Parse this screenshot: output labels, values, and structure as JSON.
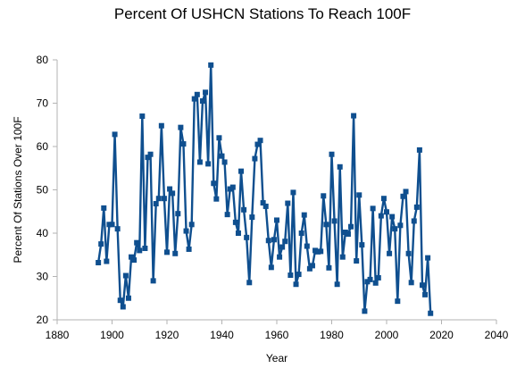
{
  "chart_data": {
    "type": "line",
    "title": "Percent Of USHCN Stations To Reach 100F",
    "xlabel": "Year",
    "ylabel": "Percent Of Stations Over 100F",
    "xlim": [
      1880,
      2040
    ],
    "ylim": [
      20,
      80
    ],
    "xticks": [
      1880,
      1900,
      1920,
      1940,
      1960,
      1980,
      2000,
      2020,
      2040
    ],
    "yticks": [
      20,
      30,
      40,
      50,
      60,
      70,
      80
    ],
    "grid": false,
    "legend": "none",
    "colors": {
      "line": "#0f4f8f",
      "marker": "#0f4f8f"
    },
    "series": [
      {
        "x": [
          1895,
          1896,
          1897,
          1898,
          1899,
          1900,
          1901,
          1902,
          1903,
          1904,
          1905,
          1906,
          1907,
          1908,
          1909,
          1910,
          1911,
          1912,
          1913,
          1914,
          1915,
          1916,
          1917,
          1918,
          1919,
          1920,
          1921,
          1922,
          1923,
          1924,
          1925,
          1926,
          1927,
          1928,
          1929,
          1930,
          1931,
          1932,
          1933,
          1934,
          1935,
          1936,
          1937,
          1938,
          1939,
          1940,
          1941,
          1942,
          1943,
          1944,
          1945,
          1946,
          1947,
          1948,
          1949,
          1950,
          1951,
          1952,
          1953,
          1954,
          1955,
          1956,
          1957,
          1958,
          1959,
          1960,
          1961,
          1962,
          1963,
          1964,
          1965,
          1966,
          1967,
          1968,
          1969,
          1970,
          1971,
          1972,
          1973,
          1974,
          1975,
          1976,
          1977,
          1978,
          1979,
          1980,
          1981,
          1982,
          1983,
          1984,
          1985,
          1986,
          1987,
          1988,
          1989,
          1990,
          1991,
          1992,
          1993,
          1994,
          1995,
          1996,
          1997,
          1998,
          1999,
          2000,
          2001,
          2002,
          2003,
          2004,
          2005,
          2006,
          2007,
          2008,
          2009,
          2010,
          2011,
          2012,
          2013,
          2014,
          2015,
          2016
        ],
        "y": [
          33.2,
          37.5,
          45.8,
          33.5,
          42,
          42,
          62.8,
          41,
          24.5,
          23,
          30.2,
          25,
          34.5,
          33.8,
          37.8,
          36,
          67,
          36.5,
          57.5,
          58.2,
          29,
          46.8,
          48,
          64.8,
          48,
          35.6,
          50.2,
          49.2,
          35.3,
          44.5,
          64.4,
          60.6,
          40.5,
          36.3,
          42,
          71,
          72,
          56.4,
          70.5,
          72.5,
          56,
          78.8,
          51.5,
          47.9,
          62,
          57.8,
          56.4,
          44.3,
          50.2,
          50.6,
          42.5,
          40,
          54.3,
          45.4,
          39,
          28.6,
          43.7,
          57.2,
          60.5,
          61.4,
          47,
          46.2,
          38.3,
          32.1,
          38.5,
          43,
          34.5,
          36.8,
          38.1,
          46.9,
          30.3,
          49.4,
          28.2,
          30.5,
          40,
          44.2,
          37,
          31.8,
          32.5,
          36,
          35.7,
          35.8,
          48.6,
          42,
          32,
          58.2,
          42.8,
          28.2,
          55.3,
          34.5,
          40.2,
          39.8,
          41.5,
          67.1,
          33.6,
          48.8,
          37.3,
          22,
          28.8,
          29.3,
          45.7,
          28.5,
          29.7,
          44,
          48,
          44.9,
          35.3,
          43.8,
          41,
          24.3,
          41.8,
          48.5,
          49.6,
          35.3,
          28.6,
          42.8,
          46,
          59.2,
          28,
          25.8,
          34.3,
          21.5
        ]
      }
    ]
  }
}
